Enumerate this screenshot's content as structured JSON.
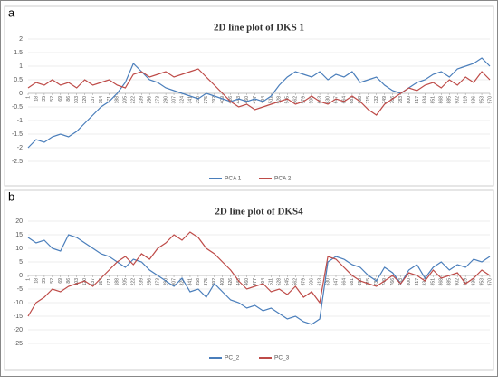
{
  "chart_data": [
    {
      "type": "line",
      "panel_label": "a",
      "title": "2D line plot of DKS 1",
      "x": [
        1,
        18,
        35,
        52,
        69,
        86,
        103,
        120,
        137,
        154,
        171,
        188,
        205,
        222,
        239,
        256,
        273,
        290,
        307,
        324,
        341,
        358,
        375,
        392,
        409,
        426,
        443,
        460,
        477,
        494,
        511,
        528,
        545,
        562,
        579,
        596,
        613,
        630,
        647,
        664,
        681,
        698,
        715,
        732,
        749,
        766,
        783,
        800,
        817,
        834,
        851,
        868,
        885,
        902,
        919,
        936,
        953,
        970
      ],
      "xlim": [
        1,
        970
      ],
      "xticks": [
        1,
        18,
        35,
        52,
        69,
        86,
        103,
        120,
        137,
        154,
        171,
        188,
        205,
        222,
        239,
        256,
        273,
        290,
        307,
        324,
        341,
        358,
        375,
        392,
        409,
        426,
        443,
        460,
        477,
        494,
        511,
        528,
        545,
        562,
        579,
        596,
        613,
        630,
        647,
        664,
        681,
        698,
        715,
        732,
        749,
        766,
        783,
        800,
        817,
        834,
        851,
        868,
        885,
        902,
        919,
        936,
        953,
        970
      ],
      "ylim": [
        -2.5,
        2
      ],
      "yticks": [
        -2.5,
        -2,
        -1.5,
        -1,
        -0.5,
        0,
        0.5,
        1,
        1.5,
        2
      ],
      "grid": true,
      "series": [
        {
          "name": "PCA 1",
          "color": "#4a7ebb",
          "values": [
            -2.0,
            -1.7,
            -1.8,
            -1.6,
            -1.5,
            -1.6,
            -1.4,
            -1.1,
            -0.8,
            -0.5,
            -0.3,
            0,
            0.4,
            1.1,
            0.8,
            0.5,
            0.4,
            0.2,
            0.1,
            0,
            -0.1,
            -0.2,
            0,
            -0.1,
            -0.2,
            -0.3,
            -0.2,
            -0.3,
            -0.2,
            -0.3,
            -0.1,
            0.3,
            0.6,
            0.8,
            0.7,
            0.6,
            0.8,
            0.5,
            0.7,
            0.6,
            0.8,
            0.4,
            0.5,
            0.6,
            0.3,
            0.1,
            0,
            0.2,
            0.4,
            0.5,
            0.7,
            0.8,
            0.6,
            0.9,
            1.0,
            1.1,
            1.3,
            1.0
          ]
        },
        {
          "name": "PCA 2",
          "color": "#be4b48",
          "values": [
            0.2,
            0.4,
            0.3,
            0.5,
            0.3,
            0.4,
            0.2,
            0.5,
            0.3,
            0.4,
            0.5,
            0.3,
            0.2,
            0.7,
            0.8,
            0.6,
            0.7,
            0.8,
            0.6,
            0.7,
            0.8,
            0.9,
            0.6,
            0.3,
            0.0,
            -0.3,
            -0.5,
            -0.4,
            -0.6,
            -0.5,
            -0.4,
            -0.3,
            -0.2,
            -0.4,
            -0.3,
            -0.1,
            -0.3,
            -0.4,
            -0.2,
            -0.3,
            -0.1,
            -0.3,
            -0.6,
            -0.8,
            -0.4,
            -0.2,
            0,
            0.2,
            0.1,
            0.3,
            0.4,
            0.2,
            0.5,
            0.3,
            0.6,
            0.4,
            0.8,
            0.5
          ]
        }
      ]
    },
    {
      "type": "line",
      "panel_label": "b",
      "title": "2D line plot of DKS4",
      "x": [
        1,
        18,
        35,
        52,
        69,
        86,
        103,
        120,
        137,
        154,
        171,
        188,
        205,
        222,
        239,
        256,
        273,
        290,
        307,
        324,
        341,
        358,
        375,
        392,
        409,
        426,
        443,
        460,
        477,
        494,
        511,
        528,
        545,
        562,
        579,
        596,
        613,
        630,
        647,
        664,
        681,
        698,
        715,
        732,
        749,
        766,
        783,
        800,
        817,
        834,
        851,
        868,
        885,
        902,
        919,
        936,
        953,
        970
      ],
      "xlim": [
        1,
        970
      ],
      "xticks": [
        1,
        18,
        35,
        52,
        69,
        86,
        103,
        120,
        137,
        154,
        171,
        188,
        205,
        222,
        239,
        256,
        273,
        290,
        307,
        324,
        341,
        358,
        375,
        392,
        409,
        426,
        443,
        460,
        477,
        494,
        511,
        528,
        545,
        562,
        579,
        596,
        613,
        630,
        647,
        664,
        681,
        698,
        715,
        732,
        749,
        766,
        783,
        800,
        817,
        834,
        851,
        868,
        885,
        902,
        919,
        936,
        953,
        970
      ],
      "ylim": [
        -25,
        20
      ],
      "yticks": [
        -25,
        -20,
        -15,
        -10,
        -5,
        0,
        5,
        10,
        15,
        20
      ],
      "grid": true,
      "series": [
        {
          "name": "PC_2",
          "color": "#4a7ebb",
          "values": [
            14,
            12,
            13,
            10,
            9,
            15,
            14,
            12,
            10,
            8,
            7,
            5,
            3,
            6,
            5,
            2,
            0,
            -2,
            -4,
            -1,
            -6,
            -5,
            -8,
            -3,
            -6,
            -9,
            -10,
            -12,
            -11,
            -13,
            -12,
            -14,
            -16,
            -15,
            -17,
            -18,
            -16,
            5,
            7,
            6,
            4,
            3,
            0,
            -2,
            3,
            1,
            -3,
            2,
            4,
            -1,
            3,
            5,
            2,
            4,
            3,
            6,
            5,
            7
          ]
        },
        {
          "name": "PC_3",
          "color": "#be4b48",
          "values": [
            -15,
            -10,
            -8,
            -5,
            -6,
            -4,
            -3,
            -2,
            -4,
            -1,
            2,
            5,
            7,
            4,
            8,
            6,
            10,
            12,
            15,
            13,
            16,
            14,
            10,
            8,
            5,
            2,
            -2,
            -5,
            -4,
            -3,
            -6,
            -5,
            -7,
            -4,
            -8,
            -6,
            -10,
            7,
            6,
            3,
            0,
            -2,
            -3,
            -4,
            -2,
            0,
            -3,
            1,
            0,
            -2,
            2,
            -1,
            0,
            1,
            -3,
            -1,
            2,
            0
          ]
        }
      ]
    }
  ]
}
